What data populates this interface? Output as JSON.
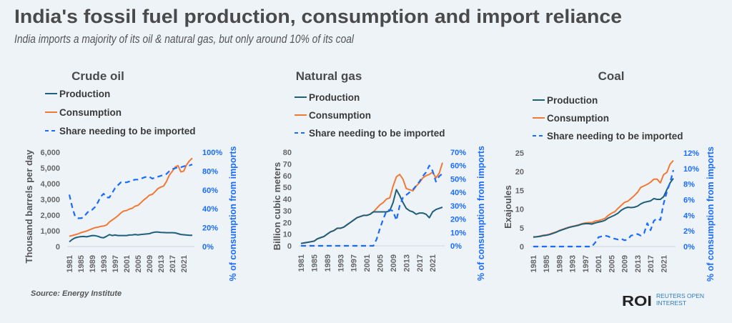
{
  "header": {
    "title": "India's fossil fuel production, consumption and import reliance",
    "subtitle": "India imports a majority of its oil & natural gas, but only around 10% of its coal"
  },
  "footer": {
    "source": "Source: Energy Institute",
    "logo_mark": "ROI",
    "logo_line1": "REUTERS OPEN",
    "logo_line2": "INTEREST"
  },
  "colors": {
    "production": "#1f5f7a",
    "consumption": "#f07a35",
    "share": "#1a6cff",
    "background": "#eef3f8"
  },
  "chart_data": [
    {
      "type": "line",
      "title": "Crude oil",
      "ylabel": "Thousand barrels per day",
      "y2label": "% of consumption from imports",
      "ylim": [
        0,
        6000
      ],
      "y2lim": [
        0,
        100
      ],
      "yticks": [
        "0",
        "1,000",
        "2,000",
        "3,000",
        "4,000",
        "5,000",
        "6,000"
      ],
      "y2ticks": [
        "0%",
        "20%",
        "40%",
        "60%",
        "80%",
        "100%"
      ],
      "xticks": [
        "1981",
        "1985",
        "1989",
        "1993",
        "1997",
        "2001",
        "2005",
        "2009",
        "2013",
        "2017",
        "2021"
      ],
      "x_start": 1981,
      "x_end": 2024,
      "legend": [
        "Production",
        "Consumption",
        "Share needing to be imported"
      ],
      "legend_position": "top",
      "series": [
        {
          "name": "Production",
          "axis": "left",
          "style": "solid",
          "values": [
            300,
            450,
            550,
            600,
            630,
            640,
            620,
            660,
            700,
            690,
            650,
            580,
            560,
            650,
            760,
            700,
            730,
            700,
            700,
            700,
            700,
            730,
            740,
            770,
            740,
            770,
            780,
            800,
            820,
            880,
            920,
            920,
            900,
            890,
            880,
            880,
            880,
            870,
            820,
            770,
            750,
            730,
            720,
            720
          ]
        },
        {
          "name": "Consumption",
          "axis": "left",
          "style": "solid",
          "values": [
            660,
            700,
            750,
            800,
            880,
            930,
            980,
            1060,
            1130,
            1200,
            1230,
            1280,
            1310,
            1370,
            1560,
            1690,
            1820,
            1960,
            2130,
            2260,
            2290,
            2380,
            2430,
            2570,
            2620,
            2780,
            2960,
            3100,
            3270,
            3320,
            3490,
            3690,
            3780,
            3850,
            4150,
            4550,
            4780,
            5050,
            5150,
            4750,
            4800,
            5200,
            5450,
            5620
          ]
        },
        {
          "name": "Share needing to be imported",
          "axis": "right",
          "style": "dashed",
          "values": [
            55,
            42,
            32,
            30,
            30,
            31,
            35,
            38,
            39,
            42,
            47,
            53,
            56,
            52,
            52,
            57,
            62,
            65,
            68,
            68,
            68,
            69,
            70,
            71,
            71,
            72,
            73,
            74,
            74,
            72,
            73,
            74,
            75,
            76,
            77,
            80,
            82,
            83,
            84,
            84,
            85,
            86,
            86,
            87
          ]
        }
      ]
    },
    {
      "type": "line",
      "title": "Natural gas",
      "ylabel": "Billion cubic meters",
      "y2label": "% of consumption from imports",
      "ylim": [
        0,
        80
      ],
      "y2lim": [
        0,
        70
      ],
      "yticks": [
        "0",
        "10",
        "20",
        "30",
        "40",
        "50",
        "60",
        "70",
        "80"
      ],
      "y2ticks": [
        "0%",
        "10%",
        "20%",
        "30%",
        "40%",
        "50%",
        "60%",
        "70%"
      ],
      "xticks": [
        "1981",
        "1985",
        "1989",
        "1993",
        "1997",
        "2001",
        "2005",
        "2009",
        "2013",
        "2017",
        "2021"
      ],
      "x_start": 1981,
      "x_end": 2024,
      "legend": [
        "Production",
        "Consumption",
        "Share needing to be imported"
      ],
      "legend_position": "top",
      "series": [
        {
          "name": "Production",
          "axis": "left",
          "style": "solid",
          "values": [
            2,
            2.5,
            3,
            3.5,
            4,
            6,
            7,
            8,
            10,
            12,
            13,
            15,
            15,
            16,
            18,
            20,
            22,
            24,
            25,
            26,
            26,
            27,
            29,
            29,
            29,
            29,
            29,
            30,
            37,
            48,
            43,
            37,
            32,
            30,
            29,
            27,
            28,
            28,
            27,
            24,
            29,
            31,
            32,
            33
          ]
        },
        {
          "name": "Consumption",
          "axis": "left",
          "style": "solid",
          "values": [
            2,
            2.5,
            3,
            3.5,
            4,
            6,
            7,
            8,
            10,
            12,
            13,
            15,
            15,
            16,
            18,
            20,
            22,
            24,
            25,
            26,
            26,
            27,
            29,
            32,
            35,
            37,
            40,
            41,
            51,
            59,
            61,
            57,
            49,
            48,
            47,
            51,
            54,
            58,
            60,
            61,
            63,
            58,
            62,
            71
          ]
        },
        {
          "name": "Share needing to be imported",
          "axis": "right",
          "style": "dashed",
          "values": [
            0,
            0,
            0,
            0,
            0,
            0,
            0,
            0,
            0,
            0,
            0,
            0,
            0,
            0,
            0,
            0,
            0,
            0,
            0,
            0,
            0,
            0,
            0,
            5,
            13,
            20,
            26,
            27,
            26,
            19,
            30,
            36,
            38,
            40,
            42,
            45,
            48,
            52,
            55,
            60,
            56,
            48,
            52,
            54
          ]
        }
      ]
    },
    {
      "type": "line",
      "title": "Coal",
      "ylabel": "Exajoules",
      "y2label": "% of consumption from imports",
      "ylim": [
        0,
        25
      ],
      "y2lim": [
        0,
        12
      ],
      "yticks": [
        "0",
        "5",
        "10",
        "15",
        "20",
        "25"
      ],
      "y2ticks": [
        "0%",
        "2%",
        "4%",
        "6%",
        "8%",
        "10%",
        "12%"
      ],
      "xticks": [
        "1981",
        "1985",
        "1989",
        "1993",
        "1997",
        "2001",
        "2005",
        "2009",
        "2013",
        "2017",
        "2021"
      ],
      "x_start": 1981,
      "x_end": 2024,
      "legend": [
        "Production",
        "Consumption",
        "Share needing to be imported"
      ],
      "legend_position": "top",
      "series": [
        {
          "name": "Production",
          "axis": "left",
          "style": "solid",
          "values": [
            2.5,
            2.6,
            2.7,
            2.9,
            3.0,
            3.2,
            3.5,
            3.8,
            4.2,
            4.5,
            4.8,
            5.1,
            5.3,
            5.5,
            5.7,
            6.0,
            6.1,
            6.1,
            6.0,
            6.3,
            6.5,
            6.7,
            7.0,
            7.6,
            8.0,
            8.4,
            8.9,
            9.7,
            10.2,
            10.5,
            10.4,
            10.5,
            10.8,
            11.4,
            11.8,
            12.0,
            12.2,
            12.8,
            12.6,
            12.6,
            13.3,
            15.2,
            17.0,
            18.2
          ]
        },
        {
          "name": "Consumption",
          "axis": "left",
          "style": "solid",
          "values": [
            2.6,
            2.6,
            2.8,
            3.0,
            3.1,
            3.3,
            3.6,
            3.9,
            4.3,
            4.6,
            4.9,
            5.2,
            5.4,
            5.6,
            5.8,
            6.1,
            6.3,
            6.4,
            6.4,
            6.8,
            6.9,
            7.2,
            7.5,
            8.3,
            8.9,
            9.3,
            10.2,
            11.0,
            11.8,
            12.1,
            12.8,
            13.6,
            14.5,
            15.8,
            16.2,
            16.6,
            17.2,
            18.0,
            18.0,
            17.0,
            19.2,
            19.8,
            22.0,
            23.0
          ]
        },
        {
          "name": "Share needing to be imported",
          "axis": "right",
          "style": "dashed",
          "values": [
            0,
            0,
            0,
            0,
            0,
            0,
            0,
            0,
            0,
            0,
            0,
            0,
            0,
            0,
            0,
            0,
            0,
            0,
            0,
            0.5,
            1.2,
            1.3,
            1.4,
            1.3,
            1.1,
            1.0,
            0.9,
            1.0,
            0.8,
            0.9,
            1.4,
            1.5,
            1.6,
            1.4,
            1.7,
            3.0,
            2.1,
            3.3,
            3.6,
            3.4,
            5.5,
            7.0,
            8.2,
            9.8
          ]
        }
      ]
    }
  ]
}
